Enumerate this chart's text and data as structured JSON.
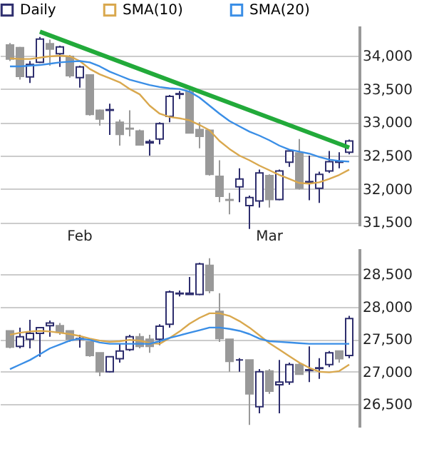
{
  "chart_data": [
    {
      "type": "candlestick",
      "categories": [
        null,
        null,
        null,
        null,
        null,
        null,
        null,
        "Feb",
        null,
        null,
        null,
        null,
        null,
        null,
        null,
        null,
        null,
        null,
        null,
        null,
        null,
        null,
        null,
        null,
        null,
        null,
        "Mar",
        null,
        null,
        null,
        null,
        null,
        null,
        null,
        null
      ],
      "series": [
        {
          "name": "Daily",
          "color": "#2e2e6e",
          "colors": [
            "#999999",
            "#999999",
            "#2e2e6e",
            "#2e2e6e",
            "#999999",
            "#2e2e6e",
            "#999999",
            "#2e2e6e",
            "#999999",
            "#999999",
            "#2e2e6e",
            "#999999",
            "#999999",
            "#999999",
            "#2e2e6e",
            "#2e2e6e",
            "#2e2e6e",
            "#2e2e6e",
            "#999999",
            "#999999",
            "#999999",
            "#999999",
            "#999999",
            "#2e2e6e",
            "#2e2e6e",
            "#2e2e6e",
            "#999999",
            "#2e2e6e",
            "#2e2e6e",
            "#999999",
            "#2e2e6e",
            "#2e2e6e",
            "#2e2e6e",
            "#2e2e6e",
            "#2e2e6e"
          ],
          "ohlc": [
            [
              34160,
              34190,
              33920,
              33950
            ],
            [
              34120,
              34130,
              33640,
              33690
            ],
            [
              33680,
              33920,
              33590,
              33870
            ],
            [
              33900,
              34280,
              33890,
              34250
            ],
            [
              34180,
              34240,
              33850,
              34100
            ],
            [
              34030,
              34150,
              33830,
              34130
            ],
            [
              33990,
              34010,
              33670,
              33700
            ],
            [
              33670,
              33850,
              33520,
              33830
            ],
            [
              33710,
              33710,
              33100,
              33120
            ],
            [
              33180,
              33190,
              32950,
              33050
            ],
            [
              33180,
              33280,
              32810,
              33190
            ],
            [
              33000,
              33040,
              32650,
              32820
            ],
            [
              32910,
              33180,
              32790,
              32900
            ],
            [
              32870,
              32890,
              32650,
              32660
            ],
            [
              32690,
              32740,
              32500,
              32710
            ],
            [
              32750,
              33000,
              32670,
              32980
            ],
            [
              33090,
              33410,
              33000,
              33390
            ],
            [
              33420,
              33470,
              33350,
              33430
            ],
            [
              33460,
              33500,
              32840,
              32840
            ],
            [
              32890,
              33000,
              32610,
              32790
            ],
            [
              32880,
              32890,
              32200,
              32220
            ],
            [
              32190,
              32430,
              31800,
              31890
            ],
            [
              31840,
              31940,
              31620,
              31830
            ],
            [
              32030,
              32310,
              31800,
              32150
            ],
            [
              31750,
              31900,
              31400,
              31870
            ],
            [
              31820,
              32290,
              31720,
              32240
            ],
            [
              32200,
              32220,
              31720,
              31840
            ],
            [
              31840,
              32290,
              31830,
              32270
            ],
            [
              32400,
              32590,
              32330,
              32570
            ],
            [
              32540,
              32750,
              31990,
              32010
            ],
            [
              32100,
              32500,
              31830,
              32110
            ],
            [
              32010,
              32260,
              31790,
              32220
            ],
            [
              32270,
              32570,
              32240,
              32410
            ],
            [
              32400,
              32550,
              32310,
              32410
            ],
            [
              32550,
              32740,
              32520,
              32720
            ]
          ]
        },
        {
          "name": "SMA(10)",
          "type": "line",
          "color": "#d9a84e",
          "values": [
            33960,
            33950,
            33950,
            33970,
            33990,
            34000,
            33990,
            33920,
            33800,
            33720,
            33660,
            33600,
            33500,
            33420,
            33250,
            33130,
            33080,
            33060,
            33030,
            32960,
            32880,
            32720,
            32600,
            32500,
            32430,
            32350,
            32280,
            32210,
            32150,
            32090,
            32080,
            32100,
            32150,
            32210,
            32290
          ]
        },
        {
          "name": "SMA(20)",
          "type": "line",
          "color": "#3a8ee6",
          "values": [
            33840,
            33840,
            33850,
            33860,
            33880,
            33900,
            33910,
            33920,
            33900,
            33840,
            33760,
            33700,
            33640,
            33600,
            33560,
            33530,
            33510,
            33500,
            33460,
            33370,
            33250,
            33130,
            33020,
            32940,
            32860,
            32800,
            32730,
            32650,
            32590,
            32560,
            32530,
            32480,
            32440,
            32420,
            32410
          ]
        },
        {
          "type": "line",
          "color": "#22aa3a",
          "values": [
            null,
            null,
            null,
            34360,
            null,
            null,
            null,
            null,
            null,
            null,
            null,
            null,
            null,
            null,
            null,
            null,
            null,
            null,
            null,
            null,
            null,
            null,
            null,
            null,
            null,
            null,
            null,
            null,
            null,
            null,
            null,
            null,
            null,
            null,
            32620
          ]
        }
      ],
      "ylim": [
        31450,
        34450
      ],
      "yticks": [
        {
          "value": 31500,
          "label": "31,500"
        },
        {
          "value": 32000,
          "label": "32,000"
        },
        {
          "value": 32500,
          "label": "32,500"
        },
        {
          "value": 33000,
          "label": "33,000"
        },
        {
          "value": 33500,
          "label": "33,500"
        },
        {
          "value": 34000,
          "label": "34,000"
        }
      ],
      "grid": "y",
      "legend": "top"
    },
    {
      "type": "candlestick",
      "categories": [
        null,
        null,
        null,
        null,
        null,
        null,
        null,
        null,
        null,
        null,
        null,
        null,
        null,
        null,
        null,
        null,
        null,
        null,
        null,
        null,
        null,
        null,
        null,
        null,
        null,
        null,
        null,
        null,
        null,
        null,
        null,
        null,
        null,
        null,
        null
      ],
      "series": [
        {
          "colors": [
            "#999999",
            "#2e2e6e",
            "#2e2e6e",
            "#2e2e6e",
            "#2e2e6e",
            "#999999",
            "#999999",
            "#2e2e6e",
            "#999999",
            "#999999",
            "#2e2e6e",
            "#2e2e6e",
            "#2e2e6e",
            "#999999",
            "#999999",
            "#2e2e6e",
            "#2e2e6e",
            "#2e2e6e",
            "#2e2e6e",
            "#2e2e6e",
            "#999999",
            "#999999",
            "#999999",
            "#2e2e6e",
            "#999999",
            "#2e2e6e",
            "#999999",
            "#2e2e6e",
            "#2e2e6e",
            "#999999",
            "#2e2e6e",
            "#2e2e6e",
            "#2e2e6e",
            "#999999",
            "#2e2e6e"
          ],
          "ohlc": [
            [
              27630,
              27630,
              27360,
              27380
            ],
            [
              27390,
              27680,
              27360,
              27540
            ],
            [
              27500,
              27800,
              27360,
              27590
            ],
            [
              27590,
              27680,
              27230,
              27680
            ],
            [
              27710,
              27790,
              27540,
              27750
            ],
            [
              27710,
              27750,
              27570,
              27610
            ],
            [
              27630,
              27630,
              27460,
              27500
            ],
            [
              27500,
              27570,
              27370,
              27510
            ],
            [
              27460,
              27460,
              27230,
              27250
            ],
            [
              27290,
              27290,
              26930,
              27000
            ],
            [
              27000,
              27230,
              26990,
              27230
            ],
            [
              27200,
              27430,
              27140,
              27320
            ],
            [
              27340,
              27570,
              27320,
              27540
            ],
            [
              27540,
              27590,
              27360,
              27390
            ],
            [
              27500,
              27570,
              27290,
              27390
            ],
            [
              27500,
              27730,
              27410,
              27700
            ],
            [
              27730,
              28250,
              27680,
              28230
            ],
            [
              28200,
              28250,
              28160,
              28210
            ],
            [
              28190,
              28460,
              28190,
              28210
            ],
            [
              28190,
              28680,
              28180,
              28660
            ],
            [
              28640,
              28750,
              28210,
              28250
            ],
            [
              27930,
              28210,
              27460,
              27510
            ],
            [
              27500,
              27500,
              27000,
              27160
            ],
            [
              27180,
              27210,
              27000,
              27180
            ],
            [
              27180,
              27180,
              26180,
              26660
            ],
            [
              26460,
              27040,
              26360,
              27000
            ],
            [
              27010,
              27040,
              26660,
              26700
            ],
            [
              26800,
              27180,
              26360,
              26840
            ],
            [
              26840,
              27140,
              26800,
              27110
            ],
            [
              27110,
              27140,
              26960,
              26960
            ],
            [
              27020,
              27390,
              26840,
              27030
            ],
            [
              27050,
              27210,
              26890,
              27060
            ],
            [
              27110,
              27320,
              27070,
              27290
            ],
            [
              27320,
              27320,
              27140,
              27200
            ],
            [
              27250,
              27860,
              27210,
              27820
            ]
          ]
        },
        {
          "type": "line",
          "color": "#d9a84e",
          "values": [
            27570,
            27600,
            27620,
            27630,
            27620,
            27600,
            27580,
            27550,
            27510,
            27480,
            27460,
            27470,
            27490,
            27480,
            27440,
            27430,
            27520,
            27620,
            27740,
            27830,
            27900,
            27900,
            27860,
            27780,
            27680,
            27560,
            27440,
            27340,
            27240,
            27140,
            27060,
            27000,
            26990,
            27010,
            27110
          ]
        },
        {
          "type": "line",
          "color": "#3a8ee6",
          "values": [
            27040,
            27110,
            27180,
            27270,
            27360,
            27420,
            27480,
            27510,
            27490,
            27450,
            27430,
            27430,
            27430,
            27430,
            27430,
            27470,
            27520,
            27560,
            27600,
            27640,
            27680,
            27680,
            27660,
            27630,
            27580,
            27510,
            27470,
            27460,
            27450,
            27440,
            27430,
            27430,
            27430,
            27430,
            27430
          ]
        }
      ],
      "ylim": [
        26150,
        28900
      ],
      "yticks": [
        {
          "value": 26500,
          "label": "26,500"
        },
        {
          "value": 27000,
          "label": "27,000"
        },
        {
          "value": 27500,
          "label": "27,500"
        },
        {
          "value": 28000,
          "label": "28,000"
        },
        {
          "value": 28500,
          "label": "28,500"
        }
      ],
      "grid": "y",
      "tick_labels": "y"
    }
  ]
}
